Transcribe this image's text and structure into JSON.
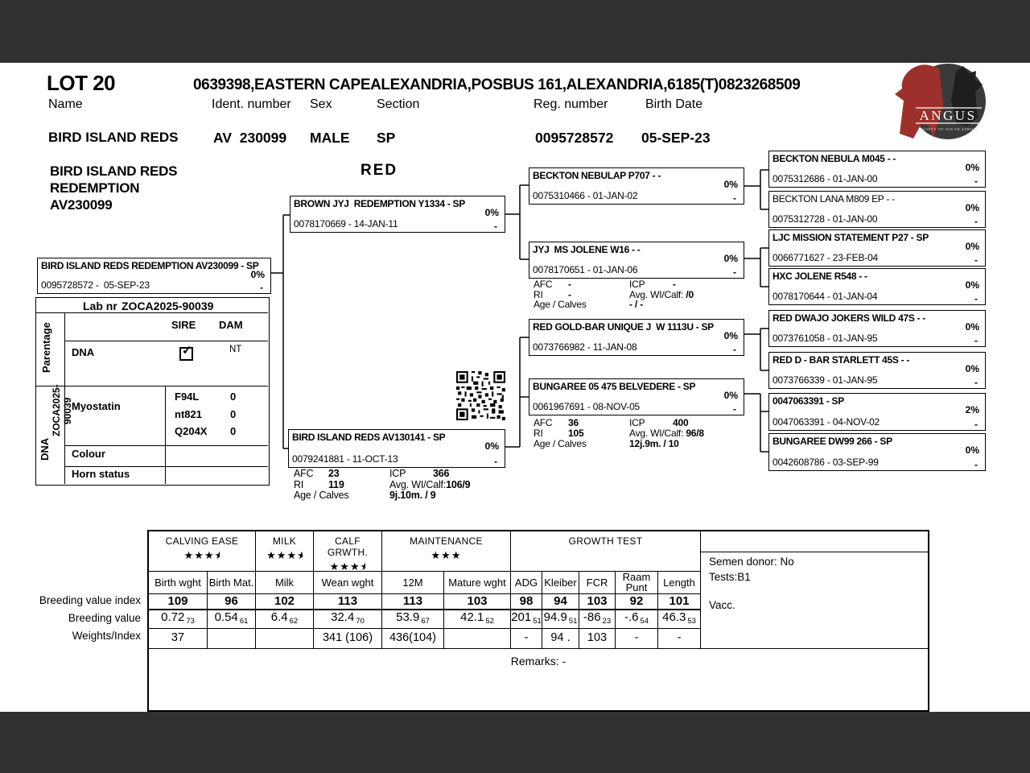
{
  "header": {
    "lot": "LOT 20",
    "address": "0639398,EASTERN CAPEALEXANDRIA,POSBUS 161,ALEXANDRIA,6185(T)0823268509",
    "fields": [
      {
        "label": "Name",
        "value": "BIRD ISLAND REDS"
      },
      {
        "label": "Ident. number",
        "value": "AV  230099"
      },
      {
        "label": "Sex",
        "value": "MALE"
      },
      {
        "label": "Section",
        "value": "SP"
      },
      {
        "label": "Reg. number",
        "value": "0095728572"
      },
      {
        "label": "Birth Date",
        "value": "05-SEP-23"
      }
    ],
    "logo": {
      "title": "ANGUS",
      "subtitle": "SOCIETY OF SOUTH AFRICA"
    }
  },
  "animal": {
    "name_lines": [
      "BIRD ISLAND REDS",
      "REDEMPTION",
      "AV230099"
    ],
    "colour": "RED"
  },
  "labels": {
    "afc": "AFC",
    "icp": "ICP",
    "ri": "RI",
    "wi": "Avg. WI/Calf:",
    "age": "Age / Calves"
  },
  "pedigree": {
    "subject": {
      "title": "BIRD ISLAND REDS REDEMPTION AV230099 - SP",
      "id": "0095728572 -  05-SEP-23",
      "pct": "0%",
      "dash": "-"
    },
    "sire": {
      "title": "BROWN JYJ  REDEMPTION Y1334 - SP",
      "id": "0078170669 - 14-JAN-11",
      "pct": "0%",
      "dash": "-"
    },
    "dam": {
      "title": "BIRD ISLAND REDS AV130141 - SP",
      "id": "0079241881 - 11-OCT-13",
      "pct": "0%",
      "dash": "-",
      "stats": {
        "afc": "23",
        "icp": "366",
        "ri": "119",
        "wi": "106/9",
        "age": "9j.10m. / 9"
      }
    },
    "gen3": [
      {
        "title": "BECKTON NEBULAP P707 - -",
        "id": "0075310466 - 01-JAN-02",
        "pct": "0%",
        "dash": "-"
      },
      {
        "title": "JYJ  MS JOLENE W16 - -",
        "id": "0078170651 - 01-JAN-06",
        "pct": "0%",
        "dash": "-",
        "stats": {
          "afc": "-",
          "icp": "-",
          "ri": "-",
          "wi": " /0",
          "age": "- / -"
        }
      },
      {
        "title": "RED GOLD-BAR UNIQUE J  W 1113U - SP",
        "id": "0073766982 - 11-JAN-08",
        "pct": "0%",
        "dash": "-"
      },
      {
        "title": "BUNGAREE 05 475 BELVEDERE - SP",
        "id": "0061967691 - 08-NOV-05",
        "pct": "0%",
        "dash": "-",
        "stats": {
          "afc": "36",
          "icp": "400",
          "ri": "105",
          "wi": " 96/8",
          "age": "12j.9m. / 10"
        }
      }
    ],
    "gen4": [
      {
        "title": "BECKTON NEBULA M045 - -",
        "id": "0075312686 - 01-JAN-00",
        "pct": "0%",
        "dash": "-"
      },
      {
        "title": "BECKTON LANA M809 EP - -",
        "id": "0075312728 - 01-JAN-00",
        "pct": "0%",
        "dash": "-"
      },
      {
        "title": "LJC MISSION STATEMENT P27 - SP",
        "id": "0066771627 - 23-FEB-04",
        "pct": "0%",
        "dash": "-"
      },
      {
        "title": "HXC JOLENE R548 - -",
        "id": "0078170644 - 01-JAN-04",
        "pct": "0%",
        "dash": "-"
      },
      {
        "title": "RED DWAJO JOKERS WILD 47S - -",
        "id": "0073761058 - 01-JAN-95",
        "pct": "0%",
        "dash": "-"
      },
      {
        "title": "RED D - BAR STARLETT 45S - -",
        "id": "0073766339 - 01-JAN-95",
        "pct": "0%",
        "dash": "-"
      },
      {
        "title": "0047063391 - SP",
        "id": "0047063391 - 04-NOV-02",
        "pct": "2%",
        "dash": "-"
      },
      {
        "title": "BUNGAREE DW99 266 - SP",
        "id": "0042608786 - 03-SEP-99",
        "pct": "0%",
        "dash": "-"
      }
    ]
  },
  "lab": {
    "lab_label": "Lab nr",
    "lab_value": "ZOCA2025-90039",
    "parentage": "Parentage",
    "dna_vert": "DNA",
    "zoca_vert": "ZOCA2025-90039",
    "sire_col": "SIRE",
    "dam_col": "DAM",
    "dna_row": "DNA",
    "dna_sire_check": "✓",
    "dna_dam": "NT",
    "myostatin": "Myostatin",
    "genes": [
      {
        "name": "F94L",
        "value": "0"
      },
      {
        "name": "nt821",
        "value": "0"
      },
      {
        "name": "Q204X",
        "value": "0"
      }
    ],
    "colour": "Colour",
    "horn": "Horn status"
  },
  "table": {
    "row_labels": [
      "Breeding value index",
      "Breeding value",
      "Weights/Index"
    ],
    "groups": [
      {
        "label": "CALVING EASE",
        "stars": 3.5
      },
      {
        "label": "MILK",
        "stars": 3.5
      },
      {
        "label": "CALF GRWTH.",
        "stars": 3.5
      },
      {
        "label": "MAINTENANCE",
        "stars": 3
      },
      {
        "label": "GROWTH TEST",
        "stars": 0
      }
    ],
    "columns": [
      {
        "header": "Birth wght",
        "index": "109",
        "bv": "0.72",
        "acc": "73",
        "wt": "37"
      },
      {
        "header": "Birth Mat.",
        "index": "96",
        "bv": "0.54",
        "acc": "61",
        "wt": ""
      },
      {
        "header": "Milk",
        "index": "102",
        "bv": "6.4",
        "acc": "62",
        "wt": ""
      },
      {
        "header": "Wean wght",
        "index": "113",
        "bv": "32.4",
        "acc": "70",
        "wt": "341 (106)"
      },
      {
        "header": "12M",
        "index": "113",
        "bv": "53.9",
        "acc": "67",
        "wt": "436(104)"
      },
      {
        "header": "Mature wght",
        "index": "103",
        "bv": "42.1",
        "acc": "52",
        "wt": ""
      },
      {
        "header": "ADG",
        "index": "98",
        "bv": "201",
        "acc": "51",
        "wt": "-"
      },
      {
        "header": "Kleiber",
        "index": "94",
        "bv": "94.9",
        "acc": "51",
        "wt": "94 ."
      },
      {
        "header": "FCR",
        "index": "103",
        "bv": "-86",
        "acc": "23",
        "wt": "103"
      },
      {
        "header": "Raam Punt",
        "index": "92",
        "bv": "-.6",
        "acc": "54",
        "wt": "-"
      },
      {
        "header": "Length",
        "index": "101",
        "bv": "46.3",
        "acc": "53",
        "wt": "-"
      }
    ],
    "side": {
      "semen": "Semen donor: No",
      "tests": "Tests:B1",
      "vacc": "Vacc."
    },
    "remarks": "Remarks: -"
  }
}
